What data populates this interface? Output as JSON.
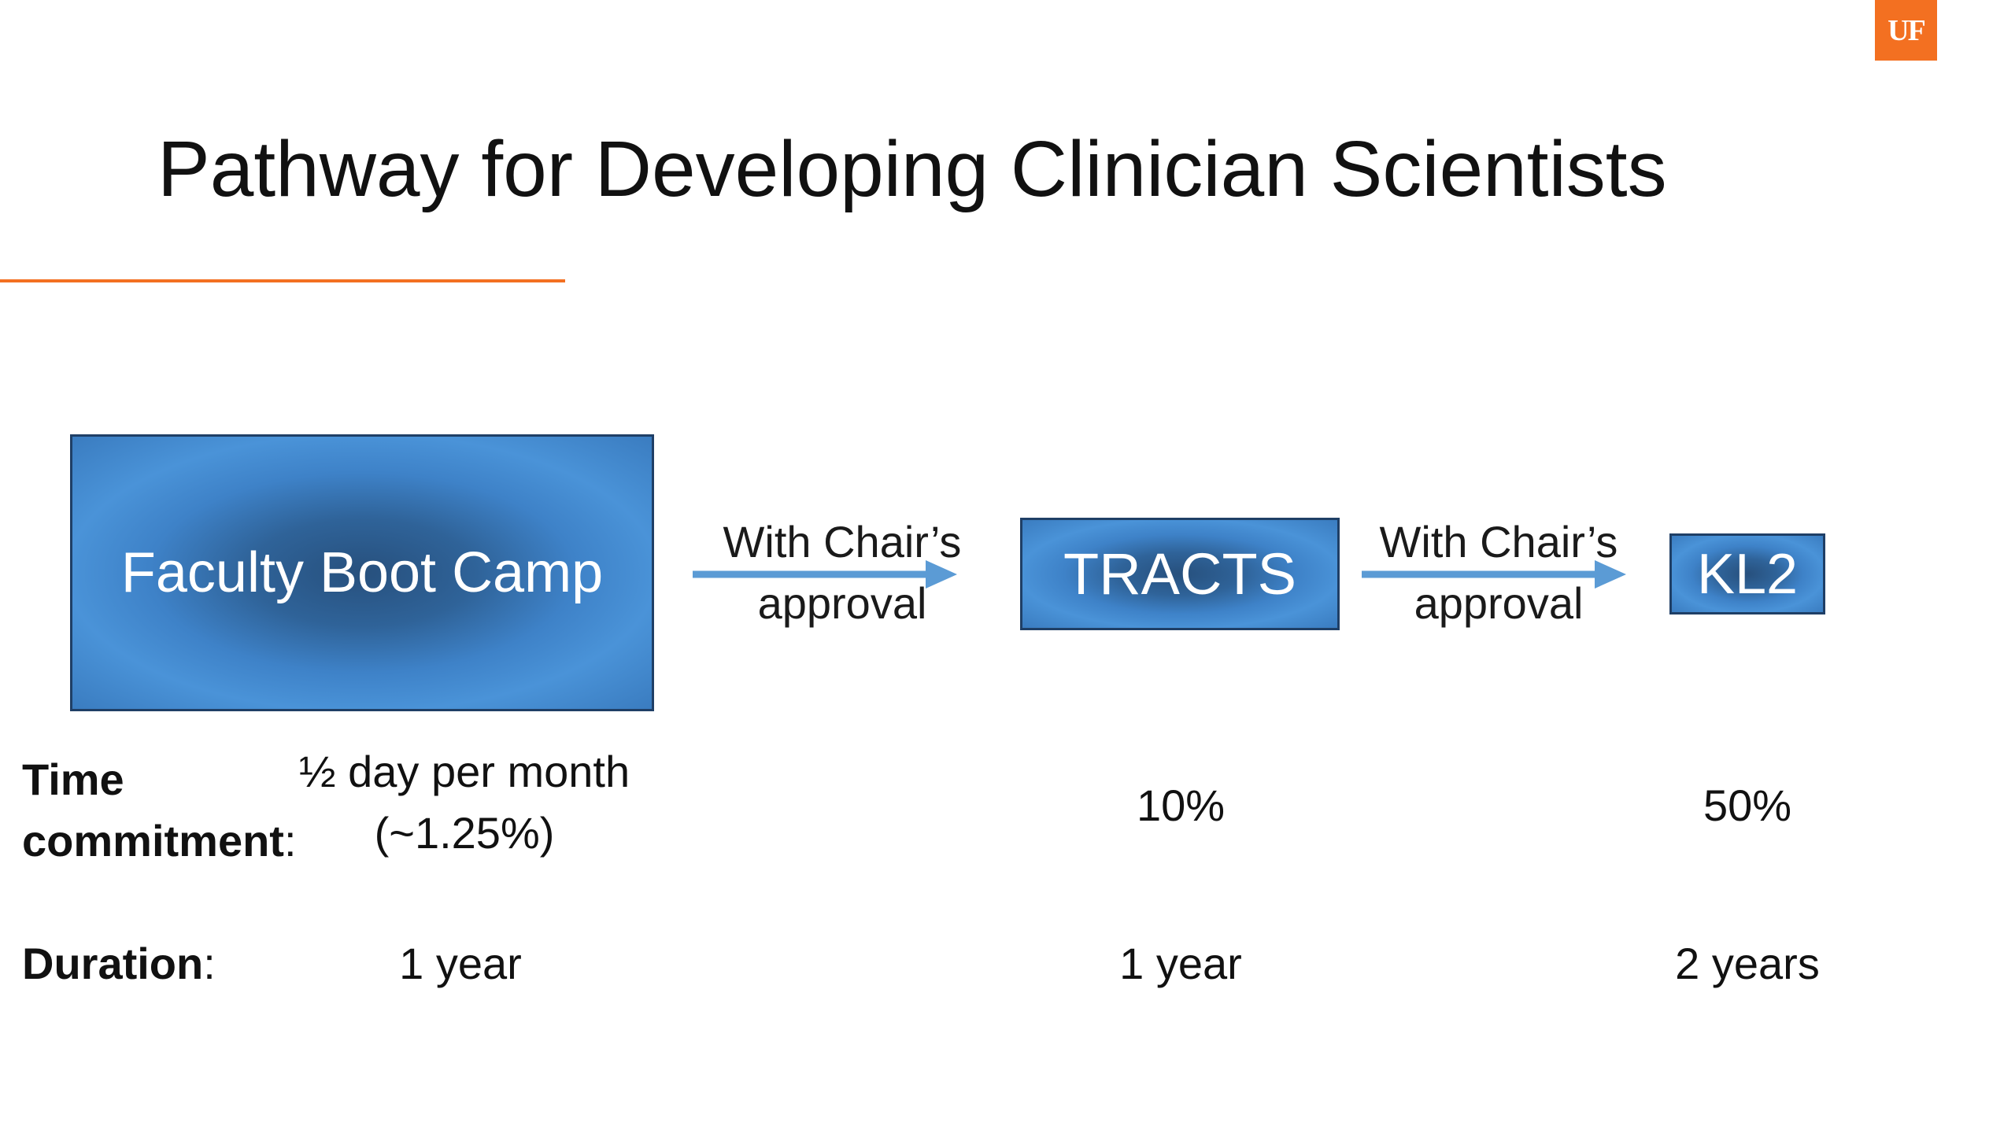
{
  "logo": {
    "text": "UF",
    "color": "#f37021"
  },
  "title": "Pathway for Developing Clinician Scientists",
  "stages": [
    {
      "label": "Faculty Boot Camp"
    },
    {
      "label": "TRACTS"
    },
    {
      "label": "KL2"
    }
  ],
  "arrows": [
    {
      "line1": "With Chair’s",
      "line2": "approval"
    },
    {
      "line1": "With Chair’s",
      "line2": "approval"
    }
  ],
  "rows": {
    "time": {
      "label_bold_1": "Time",
      "label_bold_2": "commitment",
      "label_suffix": ":",
      "values": [
        "½ day per month",
        "(~1.25%)",
        "10%",
        "50%"
      ]
    },
    "duration": {
      "label_bold": "Duration",
      "label_suffix": ":",
      "values": [
        "1 year",
        "1 year",
        "2 years"
      ]
    }
  },
  "colors": {
    "accent": "#f37021",
    "box_blue": "#3e82c8",
    "arrow_blue": "#5b9bd5"
  }
}
